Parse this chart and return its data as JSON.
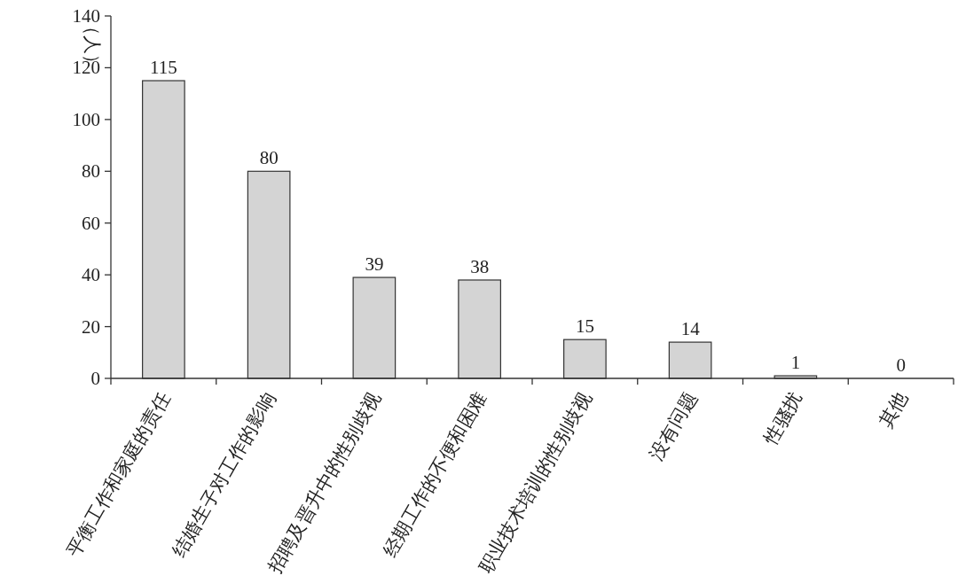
{
  "chart_data": {
    "type": "bar",
    "ylabel": "（人）",
    "categories": [
      "平衡工作和家庭的责任",
      "结婚生子对工作的影响",
      "招聘及晋升中的性别歧视",
      "经期工作的不便和困难",
      "职业技术培训的性别歧视",
      "没有问题",
      "性骚扰",
      "其他"
    ],
    "values": [
      115,
      80,
      39,
      38,
      15,
      14,
      1,
      0
    ],
    "color": "#d4d4d4",
    "ylim": [
      0,
      140
    ],
    "yticks": [
      0,
      20,
      40,
      60,
      80,
      100,
      120,
      140
    ],
    "data_labels": true,
    "grid": false
  }
}
